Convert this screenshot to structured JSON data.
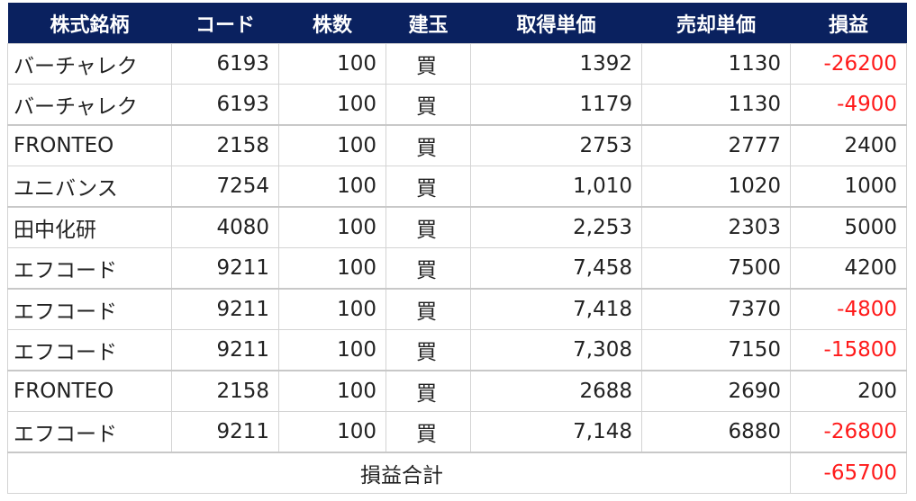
{
  "headers": [
    "株式銘柄",
    "コード",
    "株数",
    "建玉",
    "取得単価",
    "売却単価",
    "損益"
  ],
  "rows": [
    [
      "バーチャレク",
      "6193",
      "100",
      "買",
      "1392",
      "1130",
      "-26200"
    ],
    [
      "バーチャレク",
      "6193",
      "100",
      "買",
      "1179",
      "1130",
      "-4900"
    ],
    [
      "FRONTEO",
      "2158",
      "100",
      "買",
      "2753",
      "2777",
      "2400"
    ],
    [
      "ユニバンス",
      "7254",
      "100",
      "買",
      "1,010",
      "1020",
      "1000"
    ],
    [
      "田中化研",
      "4080",
      "100",
      "買",
      "2,253",
      "2303",
      "5000"
    ],
    [
      "エフコード",
      "9211",
      "100",
      "買",
      "7,458",
      "7500",
      "4200"
    ],
    [
      "エフコード",
      "9211",
      "100",
      "買",
      "7,418",
      "7370",
      "-4800"
    ],
    [
      "エフコード",
      "9211",
      "100",
      "買",
      "7,308",
      "7150",
      "-15800"
    ],
    [
      "FRONTEO",
      "2158",
      "100",
      "買",
      "2688",
      "2690",
      "200"
    ],
    [
      "エフコード",
      "9211",
      "100",
      "買",
      "7,148",
      "6880",
      "-26800"
    ]
  ],
  "total": {
    "label": "損益合計",
    "value": "-65700"
  },
  "colors": {
    "header_bg": "#0a215f",
    "negative": "#ff1a1a"
  }
}
